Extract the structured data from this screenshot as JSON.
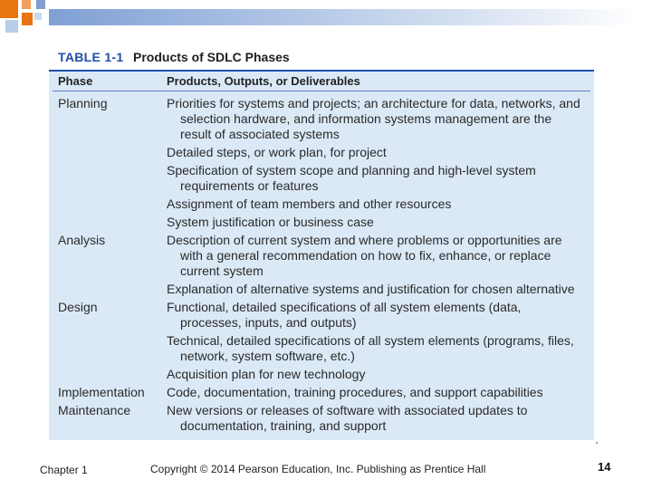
{
  "figure": {
    "number": "TABLE 1-1",
    "title": "Products of SDLC Phases",
    "columns": [
      "Phase",
      "Products, Outputs, or Deliverables"
    ],
    "rows": [
      {
        "phase": "Planning",
        "items": [
          "Priorities for systems and projects; an architecture for data, networks, and selection hardware, and information systems management are the result of associated systems",
          "Detailed steps, or work plan, for project",
          "Specification of system scope and planning and high-level system requirements or features",
          "Assignment of team members and other resources",
          "System justification or business case"
        ]
      },
      {
        "phase": "Analysis",
        "items": [
          "Description of current system and where problems or opportunities are with a general recommendation on how to fix, enhance, or replace current system",
          "Explanation of alternative systems and justification for chosen alternative"
        ]
      },
      {
        "phase": "Design",
        "items": [
          "Functional, detailed specifications of all system elements (data, processes, inputs, and outputs)",
          "Technical, detailed specifications of all system elements (programs, files, network, system software, etc.)",
          "Acquisition plan for new technology"
        ]
      },
      {
        "phase": "Implementation",
        "items": [
          "Code, documentation, training procedures, and support capabilities"
        ]
      },
      {
        "phase": "Maintenance",
        "items": [
          "New versions or releases of software with associated updates to documentation, training, and support"
        ]
      }
    ]
  },
  "footer": {
    "chapter": "Chapter 1",
    "copyright": "Copyright © 2014 Pearson Education, Inc. Publishing as Prentice Hall",
    "page": "14"
  },
  "colors": {
    "accent": "#1f4fa8",
    "table_bg": "#dbe9f7",
    "orange": "#e8750f"
  }
}
